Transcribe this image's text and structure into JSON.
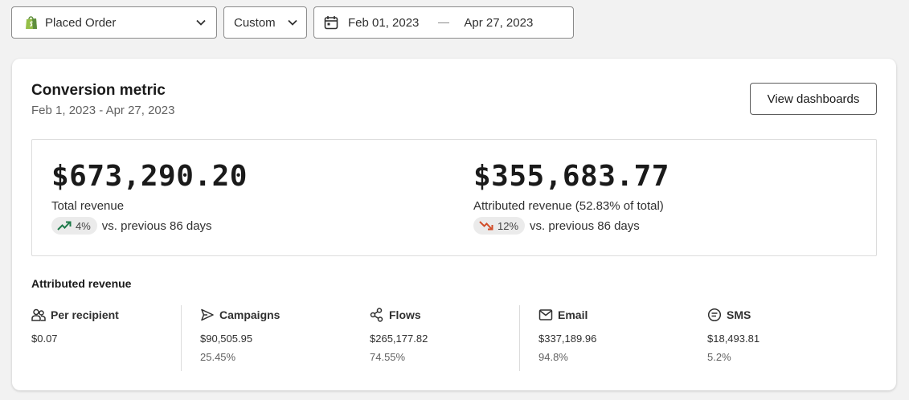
{
  "filters": {
    "metric_label": "Placed Order",
    "range_label": "Custom",
    "date_from": "Feb 01, 2023",
    "date_to": "Apr 27, 2023"
  },
  "card": {
    "title": "Conversion metric",
    "subtitle": "Feb 1, 2023 - Apr 27, 2023",
    "view_button": "View dashboards"
  },
  "summary": {
    "total": {
      "value": "$673,290.20",
      "label": "Total revenue",
      "change": "4%",
      "direction": "up",
      "compare": "vs. previous 86 days"
    },
    "attributed": {
      "value": "$355,683.77",
      "label": "Attributed revenue (52.83% of total)",
      "change": "12%",
      "direction": "down",
      "compare": "vs. previous 86 days"
    }
  },
  "attributed_section": {
    "title": "Attributed revenue",
    "items": [
      {
        "name": "Per recipient",
        "icon": "people-icon",
        "value": "$0.07",
        "pct": ""
      },
      {
        "name": "Campaigns",
        "icon": "send-icon",
        "value": "$90,505.95",
        "pct": "25.45%"
      },
      {
        "name": "Flows",
        "icon": "flow-icon",
        "value": "$265,177.82",
        "pct": "74.55%"
      },
      {
        "name": "Email",
        "icon": "mail-icon",
        "value": "$337,189.96",
        "pct": "94.8%"
      },
      {
        "name": "SMS",
        "icon": "sms-icon",
        "value": "$18,493.81",
        "pct": "5.2%"
      }
    ]
  },
  "colors": {
    "shopify_green": "#5e8e3e",
    "trend_up": "#1e7a4a",
    "trend_down": "#d24e2a"
  }
}
